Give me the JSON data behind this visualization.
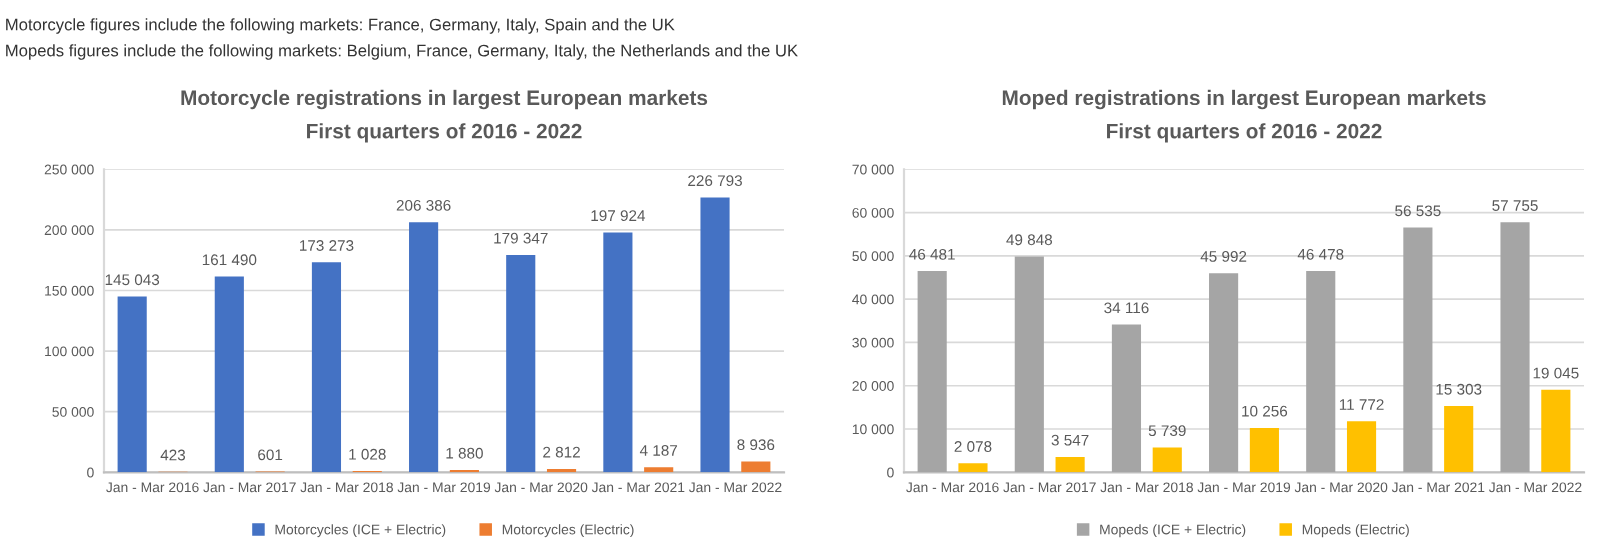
{
  "chart_data": [
    {
      "type": "bar",
      "title": "Motorcycle registrations in largest European markets",
      "subtitle": "First quarters of 2016 - 2022",
      "annotations": [
        "Motorcycle figures include the following markets: France, Germany, Italy, Spain and the UK",
        "Mopeds figures include the following markets: Belgium, France, Germany, Italy, the Netherlands and the UK"
      ],
      "categories": [
        "Jan - Mar 2016",
        "Jan - Mar 2017",
        "Jan - Mar 2018",
        "Jan - Mar 2019",
        "Jan - Mar 2020",
        "Jan - Mar 2021",
        "Jan - Mar 2022"
      ],
      "series": [
        {
          "name": "Motorcycles (ICE + Electric)",
          "color": "#4472c4",
          "values": [
            145043,
            161490,
            173273,
            206386,
            179347,
            197924,
            226793
          ],
          "value_labels": [
            "145 043",
            "161 490",
            "173 273",
            "206 386",
            "179 347",
            "197 924",
            "226 793"
          ]
        },
        {
          "name": "Motorcycles (Electric)",
          "color": "#ed7d31",
          "values": [
            423,
            601,
            1028,
            1880,
            2812,
            4187,
            8936
          ],
          "value_labels": [
            "423",
            "601",
            "1 028",
            "1 880",
            "2 812",
            "4 187",
            "8 936"
          ]
        }
      ],
      "ylim": [
        0,
        250000
      ],
      "yticks": [
        0,
        {
          "value": 50000,
          "label": "50 000"
        },
        {
          "value": 100000,
          "label": "100 000"
        },
        {
          "value": 150000,
          "label": "150 000"
        },
        {
          "value": 200000,
          "label": "200 000"
        },
        {
          "value": 250000,
          "label": "250 000"
        }
      ],
      "grid": "y",
      "legend": "bottom"
    },
    {
      "type": "bar",
      "title": "Moped registrations in largest European markets",
      "subtitle": "First quarters of 2016 - 2022",
      "categories": [
        "Jan - Mar 2016",
        "Jan - Mar 2017",
        "Jan - Mar 2018",
        "Jan - Mar 2019",
        "Jan - Mar 2020",
        "Jan - Mar 2021",
        "Jan - Mar 2022"
      ],
      "series": [
        {
          "name": "Mopeds (ICE + Electric)",
          "color": "#a5a5a5",
          "values": [
            46481,
            49848,
            34116,
            45992,
            46478,
            56535,
            57755
          ],
          "value_labels": [
            "46 481",
            "49 848",
            "34 116",
            "45 992",
            "46 478",
            "56 535",
            "57 755"
          ]
        },
        {
          "name": "Mopeds (Electric)",
          "color": "#ffc000",
          "values": [
            2078,
            3547,
            5739,
            10256,
            11772,
            15303,
            19045
          ],
          "value_labels": [
            "2 078",
            "3 547",
            "5 739",
            "10 256",
            "11 772",
            "15 303",
            "19 045"
          ]
        }
      ],
      "ylim": [
        0,
        70000
      ],
      "yticks": [
        0,
        {
          "value": 10000,
          "label": "10 000"
        },
        {
          "value": 20000,
          "label": "20 000"
        },
        {
          "value": 30000,
          "label": "30 000"
        },
        {
          "value": 40000,
          "label": "40 000"
        },
        {
          "value": 50000,
          "label": "50 000"
        },
        {
          "value": 60000,
          "label": "60 000"
        },
        {
          "value": 70000,
          "label": "70 000"
        }
      ],
      "grid": "y",
      "legend": "bottom"
    }
  ]
}
